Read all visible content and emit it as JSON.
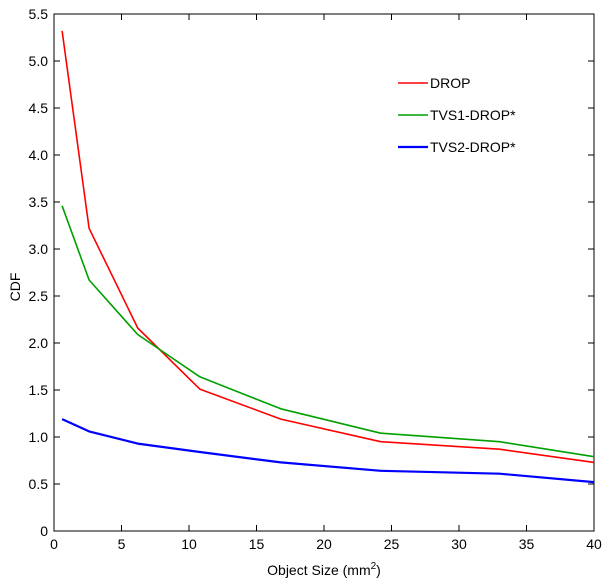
{
  "chart_data": {
    "type": "line",
    "title": "",
    "xlabel": "Object Size (mm",
    "xlabel_sup": "2",
    "xlabel_suffix": ")",
    "ylabel": "CDF",
    "xlim": [
      0,
      40
    ],
    "ylim": [
      0,
      5.5
    ],
    "xticks": [
      0,
      5,
      10,
      15,
      20,
      25,
      30,
      35,
      40
    ],
    "yticks": [
      0,
      0.5,
      1.0,
      1.5,
      2.0,
      2.5,
      3.0,
      3.5,
      4.0,
      4.5,
      5.0,
      5.5
    ],
    "xtick_labels": [
      "0",
      "5",
      "10",
      "15",
      "20",
      "25",
      "30",
      "35",
      "40"
    ],
    "ytick_labels": [
      "0",
      "0.5",
      "1.0",
      "1.5",
      "2.0",
      "2.5",
      "3.0",
      "3.5",
      "4.0",
      "4.5",
      "5.0",
      "5.5"
    ],
    "grid": false,
    "legend_position": "top-right",
    "series": [
      {
        "name": "DROP",
        "color": "#ff0000",
        "x": [
          0.6,
          2.6,
          6.2,
          10.8,
          16.8,
          24.2,
          33.0,
          40.0
        ],
        "y": [
          5.32,
          3.22,
          2.16,
          1.51,
          1.19,
          0.95,
          0.87,
          0.73
        ]
      },
      {
        "name": "TVS1-DROP*",
        "color": "#00a000",
        "x": [
          0.6,
          2.6,
          6.2,
          10.8,
          16.8,
          24.2,
          33.0,
          40.0
        ],
        "y": [
          3.46,
          2.67,
          2.09,
          1.64,
          1.3,
          1.04,
          0.95,
          0.79
        ]
      },
      {
        "name": "TVS2-DROP*",
        "color": "#0000ff",
        "x": [
          0.6,
          2.6,
          6.2,
          10.8,
          16.8,
          24.2,
          33.0,
          40.0
        ],
        "y": [
          1.19,
          1.06,
          0.93,
          0.84,
          0.73,
          0.64,
          0.61,
          0.52
        ]
      }
    ]
  }
}
